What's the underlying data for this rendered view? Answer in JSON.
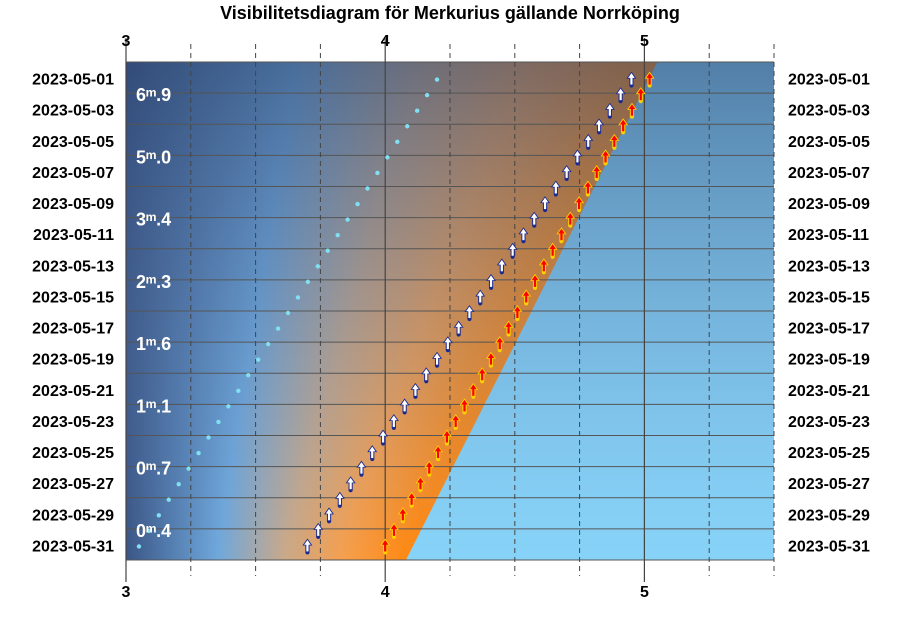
{
  "chart_data": {
    "type": "visibility-diagram",
    "title": "Visibilitetsdiagram för Merkurius gällande Norrköping",
    "x_axis": {
      "range": [
        3,
        5.5
      ],
      "ticks": [
        "3",
        "4",
        "5"
      ],
      "tick_values": [
        3,
        4,
        5
      ],
      "minor_ticks": [
        3.25,
        3.5,
        3.75,
        4.25,
        4.5,
        4.75,
        5.25,
        5.5
      ],
      "positions": [
        "top",
        "bottom"
      ]
    },
    "y_axis": {
      "dates": [
        "2023-05-01",
        "2023-05-03",
        "2023-05-05",
        "2023-05-07",
        "2023-05-09",
        "2023-05-11",
        "2023-05-13",
        "2023-05-15",
        "2023-05-17",
        "2023-05-19",
        "2023-05-21",
        "2023-05-23",
        "2023-05-25",
        "2023-05-27",
        "2023-05-29",
        "2023-05-31"
      ],
      "range": [
        "2023-05-01",
        "2023-05-31"
      ]
    },
    "magnitude_labels": [
      {
        "date": "2023-05-02",
        "label": "6ᵐ.9"
      },
      {
        "date": "2023-05-06",
        "label": "5ᵐ.0"
      },
      {
        "date": "2023-05-10",
        "label": "3ᵐ.4"
      },
      {
        "date": "2023-05-14",
        "label": "2ᵐ.3"
      },
      {
        "date": "2023-05-18",
        "label": "1ᵐ.6"
      },
      {
        "date": "2023-05-22",
        "label": "1ᵐ.1"
      },
      {
        "date": "2023-05-26",
        "label": "0ᵐ.7"
      },
      {
        "date": "2023-05-30",
        "label": "0ᵐ.4"
      }
    ],
    "series": [
      {
        "x_start": 4.2,
        "x_end": 3.05
      },
      {
        "x_start": 4.95,
        "x_end": 3.7
      },
      {
        "x_start": 5.02,
        "x_end": 4.0
      },
      {
        "x_start": 5.05,
        "x_end": 4.08
      }
    ],
    "colors": {
      "night": "#3a5585",
      "twilight": "#6fa8dc",
      "dawn": "#f5a050",
      "day": "#87d3f8",
      "mercury_dots": "#80dff0",
      "mercury_arrow": "#ffffff",
      "mercury_arrow_outline": "#1a2a90",
      "sun_arrow": "#ff0000",
      "sun_arrow_outline": "#ffd000"
    }
  }
}
